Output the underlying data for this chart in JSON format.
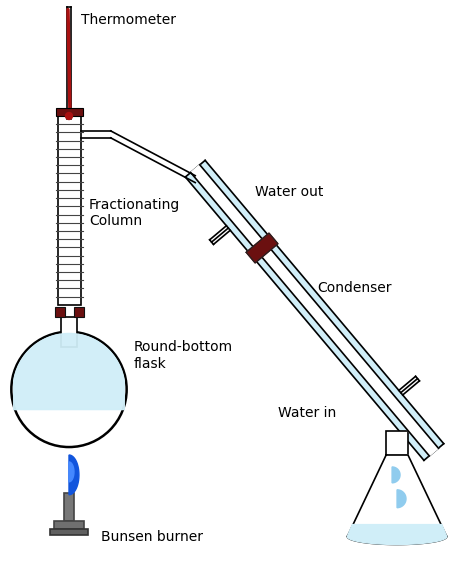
{
  "background_color": "#ffffff",
  "text_color": "#000000",
  "line_color": "#000000",
  "dark_red": "#6b1010",
  "light_blue": "#d0eef8",
  "gray_dark": "#606060",
  "gray_mid": "#808080",
  "gray_light": "#a0a0a0",
  "labels": {
    "thermometer": "Thermometer",
    "fractionating": "Fractionating\nColumn",
    "round_bottom": "Round-bottom\nflask",
    "water_out": "Water out",
    "condenser": "Condenser",
    "water_in": "Water in",
    "bunsen": "Bunsen burner"
  },
  "figsize": [
    4.74,
    5.72
  ],
  "dpi": 100
}
